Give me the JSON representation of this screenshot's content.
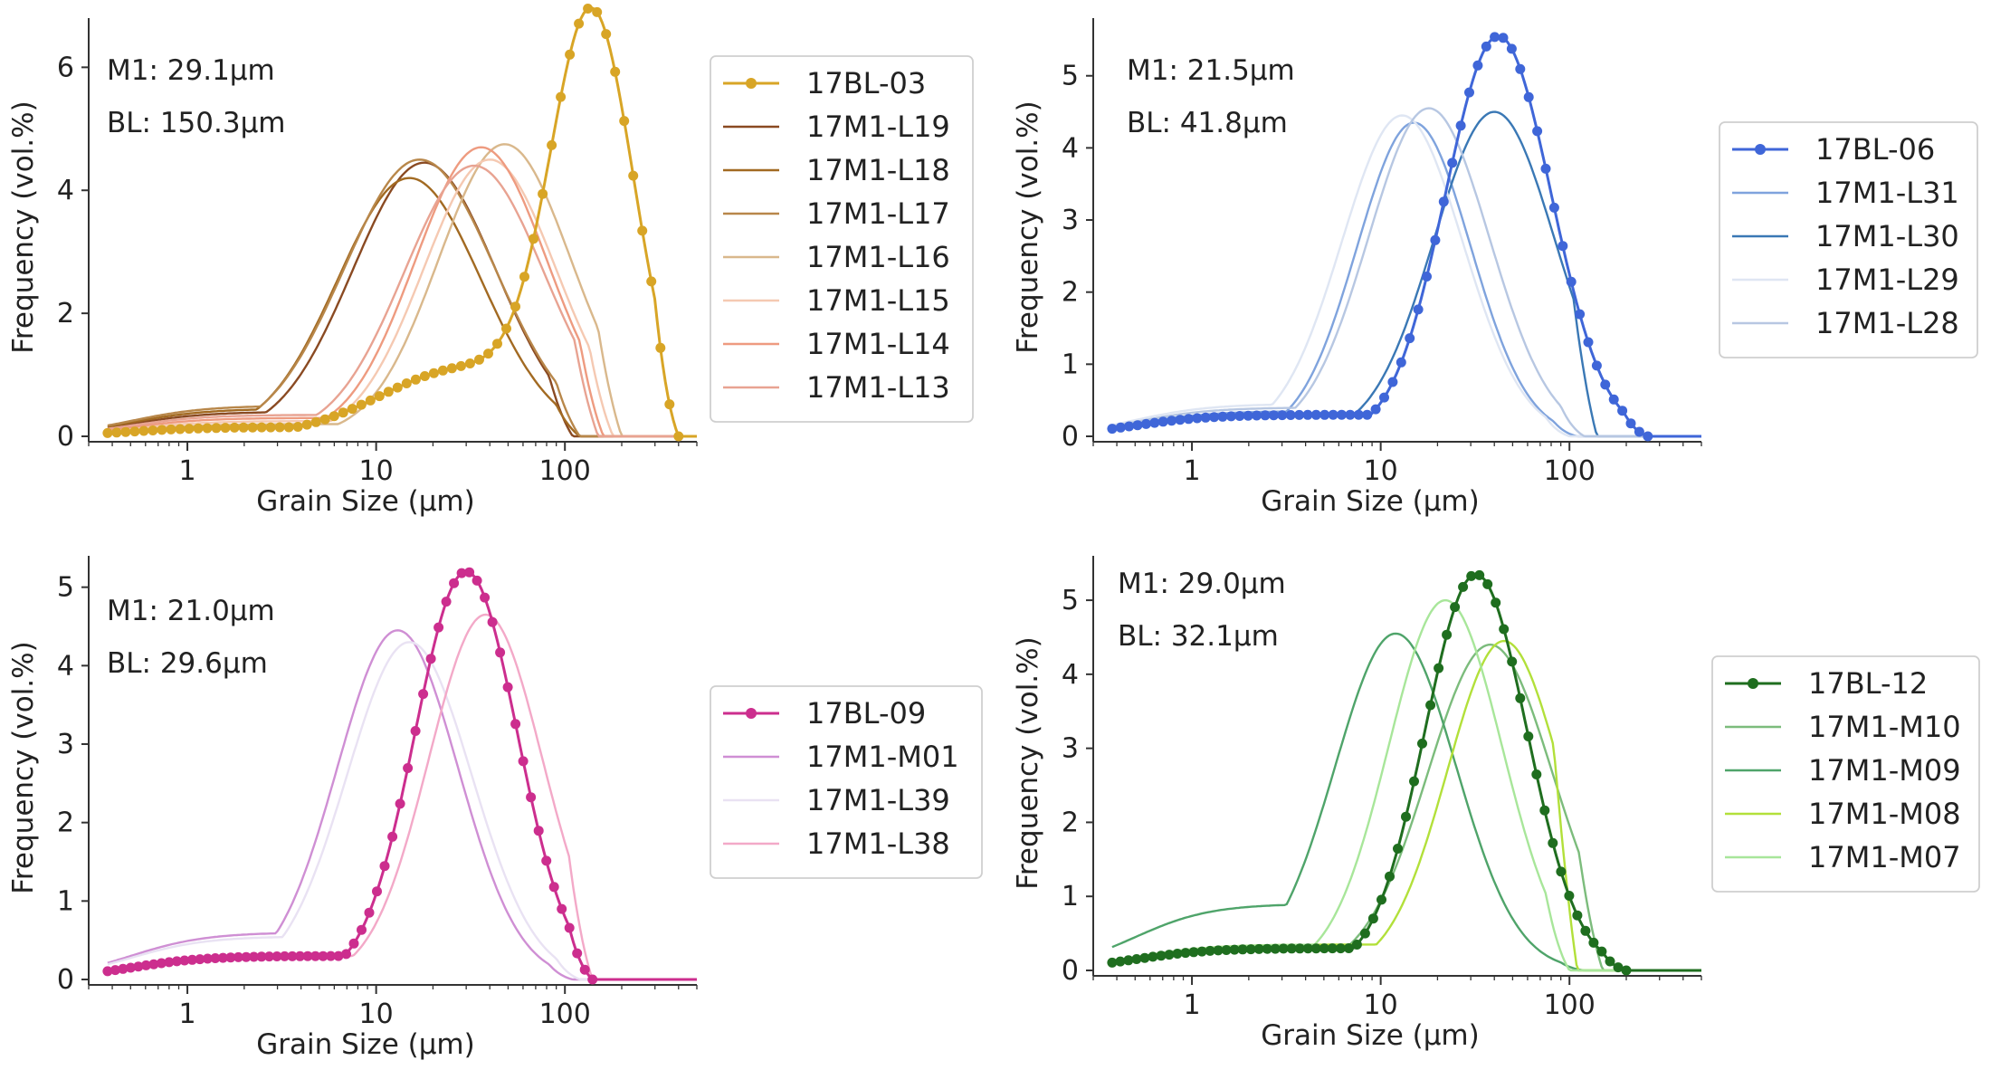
{
  "figure": {
    "layout": "2x2 grid of grain size distribution charts"
  },
  "chart_data": [
    {
      "type": "line",
      "xscale": "log",
      "xlabel": "Grain Size (μm)",
      "ylabel": "Frequency (vol.%)",
      "xlim": [
        0.3,
        500
      ],
      "ylim": [
        0,
        6.8
      ],
      "xticks": [
        1,
        10,
        100
      ],
      "xtick_labels": [
        "1",
        "10",
        "100"
      ],
      "yticks": [
        0,
        2,
        4,
        6
      ],
      "annotations": [
        "M1: 29.1μm",
        "BL: 150.3μm"
      ],
      "legend_position": "right",
      "series": [
        {
          "name": "17BL-03",
          "color": "#d8a526",
          "marker": true,
          "peak": 140,
          "sigma": 0.22,
          "height": 6.6,
          "base": 0.0,
          "shoulder": {
            "mu": 30,
            "sigma": 0.45,
            "height": 1.1
          },
          "tail": 0.15,
          "cutoff": 400
        },
        {
          "name": "17M1-L19",
          "color": "#8a4a22",
          "marker": false,
          "peak": 18,
          "sigma": 0.38,
          "height": 4.45,
          "tail": 0.4,
          "cutoff": 110
        },
        {
          "name": "17M1-L18",
          "color": "#a26a22",
          "marker": false,
          "peak": 15,
          "sigma": 0.38,
          "height": 4.2,
          "tail": 0.45,
          "cutoff": 120
        },
        {
          "name": "17M1-L17",
          "color": "#b8874a",
          "marker": false,
          "peak": 17,
          "sigma": 0.4,
          "height": 4.5,
          "tail": 0.5,
          "cutoff": 120
        },
        {
          "name": "17M1-L16",
          "color": "#d9b88c",
          "marker": false,
          "peak": 48,
          "sigma": 0.35,
          "height": 4.75,
          "tail": 0.2,
          "cutoff": 200
        },
        {
          "name": "17M1-L15",
          "color": "#f5c9b2",
          "marker": false,
          "peak": 40,
          "sigma": 0.35,
          "height": 4.5,
          "tail": 0.25,
          "cutoff": 180
        },
        {
          "name": "17M1-L14",
          "color": "#ee9b80",
          "marker": false,
          "peak": 36,
          "sigma": 0.35,
          "height": 4.7,
          "tail": 0.3,
          "cutoff": 160
        },
        {
          "name": "17M1-L13",
          "color": "#e8a392",
          "marker": false,
          "peak": 33,
          "sigma": 0.37,
          "height": 4.4,
          "tail": 0.35,
          "cutoff": 150
        }
      ]
    },
    {
      "type": "line",
      "xscale": "log",
      "xlabel": "Grain Size (μm)",
      "ylabel": "Frequency (vol.%)",
      "xlim": [
        0.3,
        500
      ],
      "ylim": [
        0,
        5.8
      ],
      "xticks": [
        1,
        10,
        100
      ],
      "xtick_labels": [
        "1",
        "10",
        "100"
      ],
      "yticks": [
        0,
        1,
        2,
        3,
        4,
        5
      ],
      "annotations": [
        "M1: 21.5μm",
        "BL: 41.8μm"
      ],
      "legend_position": "right",
      "series": [
        {
          "name": "17BL-06",
          "color": "#3f66d8",
          "marker": true,
          "peak": 42,
          "sigma": 0.28,
          "height": 5.55,
          "tail": 0.3,
          "cutoff": 260
        },
        {
          "name": "17M1-L31",
          "color": "#7fa3dd",
          "marker": false,
          "peak": 15,
          "sigma": 0.3,
          "height": 4.35,
          "tail": 0.35,
          "cutoff": 110
        },
        {
          "name": "17M1-L30",
          "color": "#3a78b5",
          "marker": false,
          "peak": 40,
          "sigma": 0.32,
          "height": 4.5,
          "tail": 0.3,
          "cutoff": 140
        },
        {
          "name": "17M1-L29",
          "color": "#dfe6f3",
          "marker": false,
          "peak": 13,
          "sigma": 0.32,
          "height": 4.45,
          "tail": 0.45,
          "cutoff": 100
        },
        {
          "name": "17M1-L28",
          "color": "#b7c7e2",
          "marker": false,
          "peak": 18,
          "sigma": 0.32,
          "height": 4.55,
          "tail": 0.4,
          "cutoff": 120
        }
      ]
    },
    {
      "type": "line",
      "xscale": "log",
      "xlabel": "Grain Size (μm)",
      "ylabel": "Frequency (vol.%)",
      "xlim": [
        0.3,
        500
      ],
      "ylim": [
        0,
        5.4
      ],
      "xticks": [
        1,
        10,
        100
      ],
      "xtick_labels": [
        "1",
        "10",
        "100"
      ],
      "yticks": [
        0,
        1,
        2,
        3,
        4,
        5
      ],
      "annotations": [
        "M1: 21.0μm",
        "BL: 29.6μm"
      ],
      "legend_position": "right",
      "series": [
        {
          "name": "17BL-09",
          "color": "#cc2e8e",
          "marker": true,
          "peak": 30,
          "sigma": 0.27,
          "height": 5.2,
          "tail": 0.3,
          "cutoff": 140
        },
        {
          "name": "17M1-M01",
          "color": "#cf8fd4",
          "marker": false,
          "peak": 13,
          "sigma": 0.32,
          "height": 4.45,
          "tail": 0.6,
          "cutoff": 110
        },
        {
          "name": "17M1-L39",
          "color": "#e9e2f3",
          "marker": false,
          "peak": 15,
          "sigma": 0.33,
          "height": 4.3,
          "tail": 0.55,
          "cutoff": 120
        },
        {
          "name": "17M1-L38",
          "color": "#f3a9c8",
          "marker": false,
          "peak": 38,
          "sigma": 0.3,
          "height": 4.65,
          "tail": 0.3,
          "cutoff": 140
        }
      ]
    },
    {
      "type": "line",
      "xscale": "log",
      "xlabel": "Grain Size (μm)",
      "ylabel": "Frequency (vol.%)",
      "xlim": [
        0.3,
        500
      ],
      "ylim": [
        0,
        5.6
      ],
      "xticks": [
        1,
        10,
        100
      ],
      "xtick_labels": [
        "1",
        "10",
        "100"
      ],
      "yticks": [
        0,
        1,
        2,
        3,
        4,
        5
      ],
      "annotations": [
        "M1: 29.0μm",
        "BL: 32.1μm"
      ],
      "legend_position": "right",
      "series": [
        {
          "name": "17BL-12",
          "color": "#1f6e1f",
          "marker": true,
          "peak": 32,
          "sigma": 0.27,
          "height": 5.35,
          "tail": 0.3,
          "cutoff": 200
        },
        {
          "name": "17M1-M10",
          "color": "#7cbc7c",
          "marker": false,
          "peak": 38,
          "sigma": 0.33,
          "height": 4.4,
          "tail": 0.3,
          "cutoff": 150
        },
        {
          "name": "17M1-M09",
          "color": "#4fa46a",
          "marker": false,
          "peak": 12,
          "sigma": 0.32,
          "height": 4.55,
          "tail": 0.9,
          "cutoff": 120
        },
        {
          "name": "17M1-M08",
          "color": "#b2e03a",
          "marker": false,
          "peak": 45,
          "sigma": 0.3,
          "height": 4.45,
          "tail": 0.35,
          "cutoff": 110
        },
        {
          "name": "17M1-M07",
          "color": "#a8e69a",
          "marker": false,
          "peak": 22,
          "sigma": 0.3,
          "height": 5.0,
          "tail": 0.35,
          "cutoff": 100
        }
      ]
    }
  ]
}
